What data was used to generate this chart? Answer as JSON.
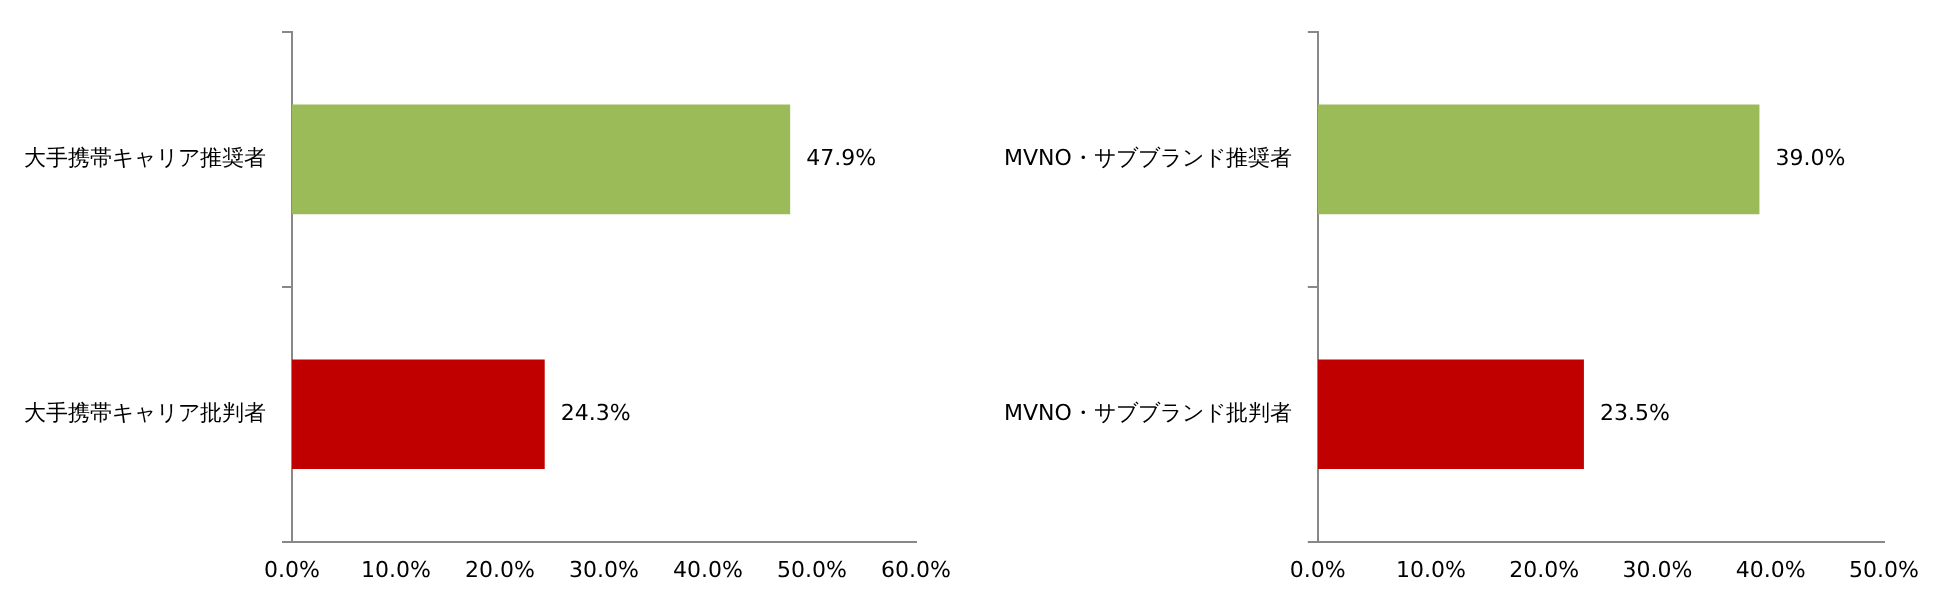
{
  "chart_data": [
    {
      "type": "bar",
      "orientation": "horizontal",
      "categories": [
        "大手携帯キャリア推奨者",
        "大手携帯キャリア批判者"
      ],
      "values": [
        47.9,
        24.3
      ],
      "colors": [
        "#9bbb59",
        "#c00000"
      ],
      "value_labels": [
        "47.9%",
        "24.3%"
      ],
      "xlim": [
        0,
        60
      ],
      "xticks": [
        {
          "value": 0,
          "label": "0.0%"
        },
        {
          "value": 10,
          "label": "10.0%"
        },
        {
          "value": 20,
          "label": "20.0%"
        },
        {
          "value": 30,
          "label": "30.0%"
        },
        {
          "value": 40,
          "label": "40.0%"
        },
        {
          "value": 50,
          "label": "50.0%"
        },
        {
          "value": 60,
          "label": "60.0%"
        }
      ]
    },
    {
      "type": "bar",
      "orientation": "horizontal",
      "categories": [
        "MVNO・サブブランド推奨者",
        "MVNO・サブブランド批判者"
      ],
      "values": [
        39.0,
        23.5
      ],
      "colors": [
        "#9bbb59",
        "#c00000"
      ],
      "value_labels": [
        "39.0%",
        "23.5%"
      ],
      "xlim": [
        0,
        50
      ],
      "xticks": [
        {
          "value": 0,
          "label": "0.0%"
        },
        {
          "value": 10,
          "label": "10.0%"
        },
        {
          "value": 20,
          "label": "20.0%"
        },
        {
          "value": 30,
          "label": "30.0%"
        },
        {
          "value": 40,
          "label": "40.0%"
        },
        {
          "value": 50,
          "label": "50.0%"
        }
      ]
    }
  ]
}
